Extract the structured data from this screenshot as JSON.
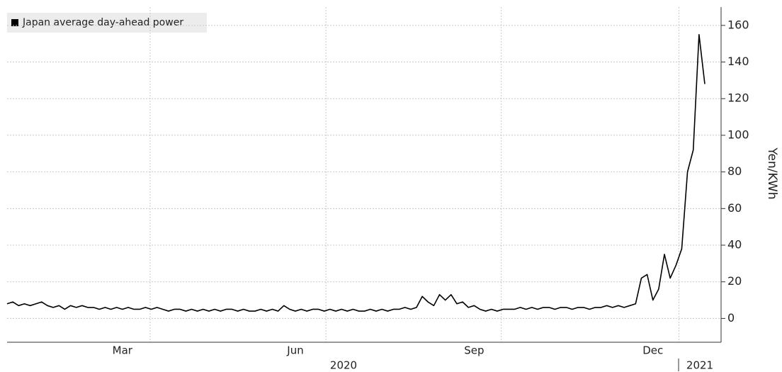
{
  "chart_data": {
    "type": "line",
    "legend_title": "Japan average day-ahead power",
    "y_label": "Yen/KWh",
    "x_years": [
      "2020",
      "2021"
    ],
    "categories": [
      null,
      null,
      null,
      null,
      null,
      null,
      null,
      null,
      null,
      null,
      null,
      null,
      null,
      null,
      null,
      null,
      null,
      null,
      null,
      null,
      "Mar",
      null,
      null,
      null,
      null,
      null,
      null,
      null,
      null,
      null,
      null,
      null,
      null,
      null,
      null,
      null,
      null,
      null,
      null,
      null,
      null,
      null,
      null,
      null,
      null,
      null,
      null,
      null,
      null,
      null,
      "Jun",
      null,
      null,
      null,
      null,
      null,
      null,
      null,
      null,
      null,
      null,
      null,
      null,
      null,
      null,
      null,
      null,
      null,
      null,
      null,
      null,
      null,
      null,
      null,
      null,
      null,
      null,
      null,
      null,
      null,
      null,
      "Sep",
      null,
      null,
      null,
      null,
      null,
      null,
      null,
      null,
      null,
      null,
      null,
      null,
      null,
      null,
      null,
      null,
      null,
      null,
      null,
      null,
      null,
      null,
      null,
      null,
      null,
      null,
      null,
      null,
      null,
      null,
      "Dec",
      null,
      null,
      null,
      null,
      null,
      null,
      null,
      null,
      null
    ],
    "series": [
      {
        "name": "Japan average day-ahead power",
        "color": "#000000",
        "values": [
          8,
          9,
          7,
          8,
          7,
          8,
          9,
          7,
          6,
          7,
          5,
          7,
          6,
          7,
          6,
          6,
          5,
          6,
          5,
          6,
          5,
          6,
          5,
          5,
          6,
          5,
          6,
          5,
          4,
          5,
          5,
          4,
          5,
          4,
          5,
          4,
          5,
          4,
          5,
          5,
          4,
          5,
          4,
          4,
          5,
          4,
          5,
          4,
          7,
          5,
          4,
          5,
          4,
          5,
          5,
          4,
          5,
          4,
          5,
          4,
          5,
          4,
          4,
          5,
          4,
          5,
          4,
          5,
          5,
          6,
          5,
          6,
          12,
          9,
          7,
          13,
          10,
          13,
          8,
          9,
          6,
          7,
          5,
          4,
          5,
          4,
          5,
          5,
          5,
          6,
          5,
          6,
          5,
          6,
          6,
          5,
          6,
          6,
          5,
          6,
          6,
          5,
          6,
          6,
          7,
          6,
          7,
          6,
          7,
          8,
          22,
          24,
          10,
          16,
          35,
          22,
          29,
          38,
          80,
          92,
          155,
          128
        ]
      }
    ],
    "ylim": [
      -13,
      170
    ],
    "yticks": [
      0,
      20,
      40,
      60,
      80,
      100,
      120,
      140,
      160
    ],
    "grid": true
  }
}
